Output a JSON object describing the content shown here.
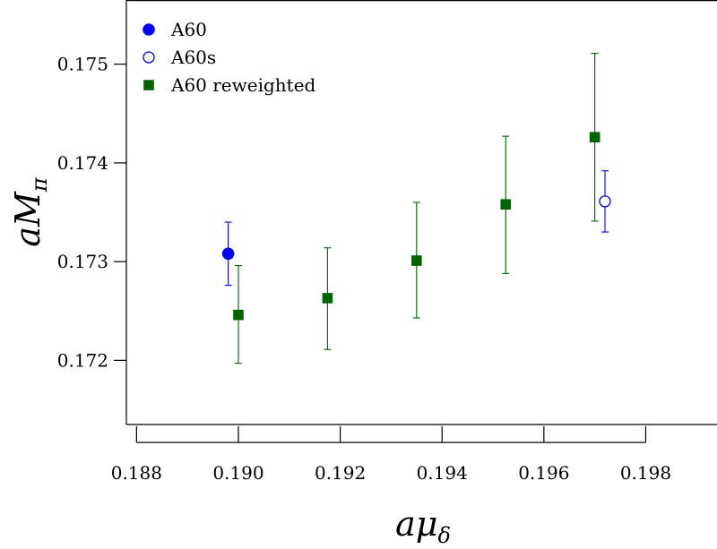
{
  "chart_data": {
    "type": "scatter",
    "title": "",
    "xlabel": "aμδ",
    "ylabel": "aMπ",
    "xlim": [
      0.1878,
      0.1994
    ],
    "ylim": [
      0.17135,
      0.17565
    ],
    "x_ticks": [
      "0.188",
      "0.190",
      "0.192",
      "0.194",
      "0.196",
      "0.198"
    ],
    "x_tick_values": [
      0.188,
      0.19,
      0.192,
      0.194,
      0.196,
      0.198
    ],
    "y_ticks": [
      "0.172",
      "0.173",
      "0.174",
      "0.175"
    ],
    "y_tick_values": [
      0.172,
      0.173,
      0.174,
      0.175
    ],
    "grid": false,
    "legend_position": "top-left",
    "series": [
      {
        "name": "A60",
        "color": "#0000ff",
        "marker": "filled-circle",
        "points": [
          {
            "x": 0.1898,
            "y": 0.17308,
            "yerr_low": 0.17276,
            "yerr_high": 0.1734
          }
        ]
      },
      {
        "name": "A60s",
        "color": "#0000ff",
        "marker": "open-circle",
        "points": [
          {
            "x": 0.1972,
            "y": 0.17361,
            "yerr_low": 0.1733,
            "yerr_high": 0.17392
          }
        ]
      },
      {
        "name": "A60 reweighted",
        "color": "#006400",
        "marker": "filled-square",
        "points": [
          {
            "x": 0.19,
            "y": 0.17246,
            "yerr_low": 0.17197,
            "yerr_high": 0.17296
          },
          {
            "x": 0.19175,
            "y": 0.17263,
            "yerr_low": 0.17211,
            "yerr_high": 0.17314
          },
          {
            "x": 0.1935,
            "y": 0.17301,
            "yerr_low": 0.17243,
            "yerr_high": 0.1736
          },
          {
            "x": 0.19525,
            "y": 0.17358,
            "yerr_low": 0.17288,
            "yerr_high": 0.17427
          },
          {
            "x": 0.197,
            "y": 0.17426,
            "yerr_low": 0.17341,
            "yerr_high": 0.17511
          }
        ]
      }
    ]
  }
}
